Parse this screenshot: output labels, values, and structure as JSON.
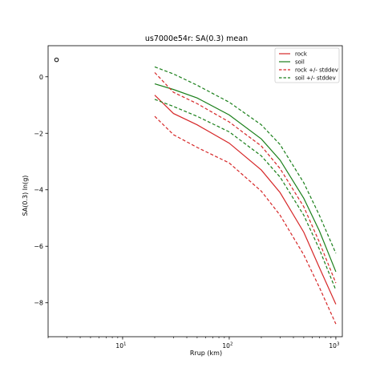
{
  "chart_data": {
    "type": "line",
    "title": "us7000e54r: SA(0.3) mean",
    "xlabel": "Rrup (km)",
    "ylabel": "SA(0.3) ln(g)",
    "xscale": "log",
    "xlim": [
      2,
      1150
    ],
    "ylim": [
      -9.2,
      1.1
    ],
    "xticks": [
      {
        "value": 10,
        "base": "10",
        "exp": "1"
      },
      {
        "value": 100,
        "base": "10",
        "exp": "2"
      },
      {
        "value": 1000,
        "base": "10",
        "exp": "3"
      }
    ],
    "yticks": [
      0,
      -2,
      -4,
      -6,
      -8
    ],
    "ytick_labels": [
      "0",
      "−2",
      "−4",
      "−6",
      "−8"
    ],
    "grid": false,
    "legend_position": "top-right",
    "colors": {
      "rock": "#d62728",
      "soil": "#1a7f1a"
    },
    "series": [
      {
        "name": "rock",
        "color": "#d62728",
        "dash": "solid",
        "x": [
          20,
          30,
          50,
          100,
          200,
          300,
          500,
          700,
          1000
        ],
        "y": [
          -0.65,
          -1.3,
          -1.7,
          -2.35,
          -3.3,
          -4.1,
          -5.5,
          -6.75,
          -8.05
        ]
      },
      {
        "name": "soil",
        "color": "#1a7f1a",
        "dash": "solid",
        "x": [
          20,
          30,
          50,
          100,
          200,
          300,
          500,
          700,
          1000
        ],
        "y": [
          -0.25,
          -0.45,
          -0.75,
          -1.35,
          -2.2,
          -2.95,
          -4.3,
          -5.45,
          -6.9
        ]
      },
      {
        "name": "rock +/- stddev",
        "color": "#d62728",
        "dash": "dashed",
        "x": [
          20,
          30,
          50,
          100,
          200,
          300,
          500,
          700,
          1000
        ],
        "y": [
          0.15,
          -0.55,
          -0.95,
          -1.6,
          -2.45,
          -3.25,
          -4.6,
          -5.85,
          -7.3
        ]
      },
      {
        "name": "rock +/- stddev (lower)",
        "color": "#d62728",
        "dash": "dashed",
        "in_legend": false,
        "x": [
          20,
          30,
          50,
          100,
          200,
          300,
          500,
          700,
          1000
        ],
        "y": [
          -1.4,
          -2.05,
          -2.5,
          -3.05,
          -4.05,
          -4.9,
          -6.3,
          -7.45,
          -8.75
        ]
      },
      {
        "name": "soil +/- stddev",
        "color": "#1a7f1a",
        "dash": "dashed",
        "x": [
          20,
          30,
          50,
          100,
          200,
          300,
          500,
          700,
          1000
        ],
        "y": [
          0.35,
          0.1,
          -0.3,
          -0.9,
          -1.7,
          -2.4,
          -3.75,
          -4.9,
          -6.25
        ]
      },
      {
        "name": "soil +/- stddev (lower)",
        "color": "#1a7f1a",
        "dash": "dashed",
        "in_legend": false,
        "x": [
          20,
          30,
          50,
          100,
          200,
          300,
          500,
          700,
          1000
        ],
        "y": [
          -0.8,
          -1.05,
          -1.4,
          -1.95,
          -2.8,
          -3.55,
          -4.9,
          -6.1,
          -7.55
        ]
      }
    ],
    "markers": [
      {
        "name": "event",
        "x": 2.4,
        "y": 0.6,
        "shape": "open-circle",
        "color": "#000000"
      }
    ]
  }
}
